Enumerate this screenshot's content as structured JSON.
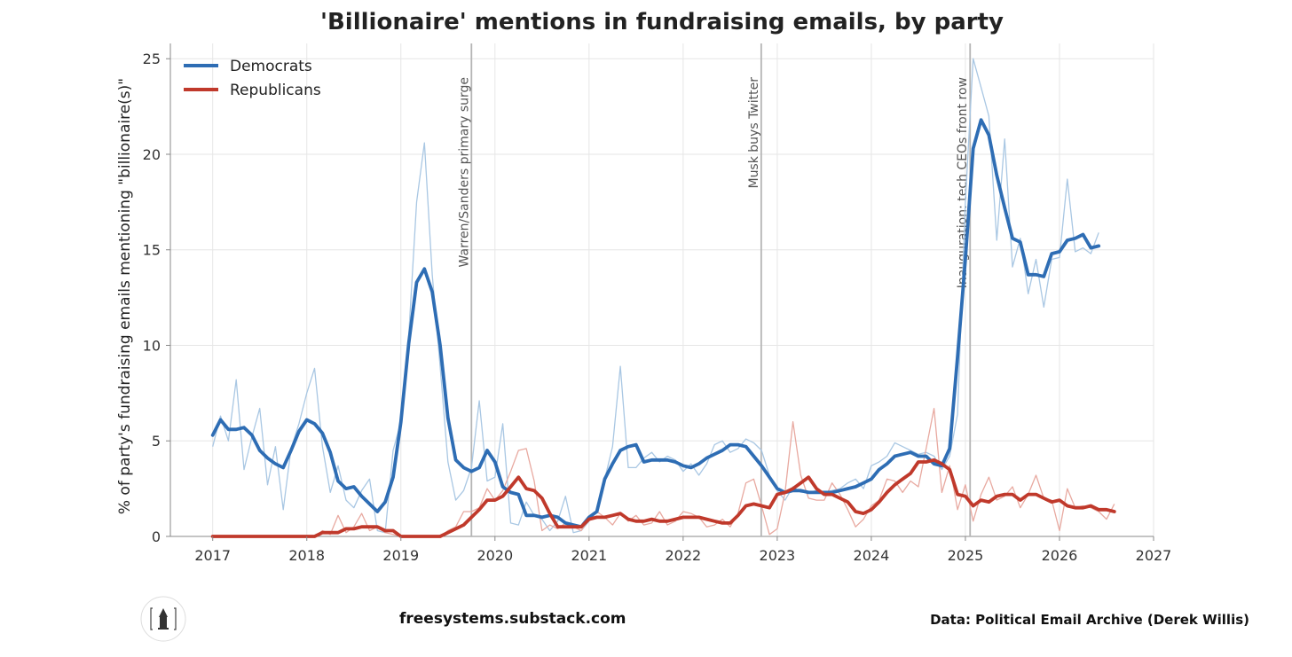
{
  "chart_data": {
    "type": "line",
    "title": "'Billionaire' mentions in fundraising emails, by party",
    "ylabel": "% of party's fundraising emails mentioning \"billionaire(s)\"",
    "xlabel": "",
    "xlim": [
      2016.55,
      2027
    ],
    "ylim": [
      0,
      25.8
    ],
    "x_ticks": [
      2017,
      2018,
      2019,
      2020,
      2021,
      2022,
      2023,
      2024,
      2025,
      2026,
      2027
    ],
    "y_ticks": [
      0,
      5,
      10,
      15,
      20,
      25
    ],
    "grid": true,
    "legend_position": "top-left",
    "series": [
      {
        "name": "Democrats",
        "color": "#2e6db4",
        "x": [
          2017.0,
          2017.083,
          2017.167,
          2017.25,
          2017.333,
          2017.417,
          2017.5,
          2017.583,
          2017.667,
          2017.75,
          2017.833,
          2017.917,
          2018.0,
          2018.083,
          2018.167,
          2018.25,
          2018.333,
          2018.417,
          2018.5,
          2018.583,
          2018.667,
          2018.75,
          2018.833,
          2018.917,
          2019.0,
          2019.083,
          2019.167,
          2019.25,
          2019.333,
          2019.417,
          2019.5,
          2019.583,
          2019.667,
          2019.75,
          2019.833,
          2019.917,
          2020.0,
          2020.083,
          2020.167,
          2020.25,
          2020.333,
          2020.417,
          2020.5,
          2020.583,
          2020.667,
          2020.75,
          2020.833,
          2020.917,
          2021.0,
          2021.083,
          2021.167,
          2021.25,
          2021.333,
          2021.417,
          2021.5,
          2021.583,
          2021.667,
          2021.75,
          2021.833,
          2021.917,
          2022.0,
          2022.083,
          2022.167,
          2022.25,
          2022.333,
          2022.417,
          2022.5,
          2022.583,
          2022.667,
          2022.75,
          2022.833,
          2022.917,
          2023.0,
          2023.083,
          2023.167,
          2023.25,
          2023.333,
          2023.417,
          2023.5,
          2023.583,
          2023.667,
          2023.75,
          2023.833,
          2023.917,
          2024.0,
          2024.083,
          2024.167,
          2024.25,
          2024.333,
          2024.417,
          2024.5,
          2024.583,
          2024.667,
          2024.75,
          2024.833,
          2024.917,
          2025.0,
          2025.083,
          2025.167,
          2025.25,
          2025.333,
          2025.417,
          2025.5,
          2025.583,
          2025.667,
          2025.75,
          2025.833,
          2025.917,
          2026.0,
          2026.083,
          2026.167,
          2026.25,
          2026.333,
          2026.417,
          2026.5,
          2026.583
        ],
        "smoothed": [
          5.3,
          6.1,
          5.6,
          5.6,
          5.7,
          5.3,
          4.5,
          4.1,
          3.8,
          3.6,
          4.5,
          5.5,
          6.1,
          5.9,
          5.4,
          4.4,
          2.9,
          2.5,
          2.6,
          2.1,
          1.7,
          1.3,
          1.8,
          3.1,
          6.0,
          10.1,
          13.3,
          14.0,
          12.8,
          10.0,
          6.2,
          4.0,
          3.6,
          3.4,
          3.6,
          4.5,
          3.9,
          2.6,
          2.3,
          2.2,
          1.1,
          1.1,
          1.0,
          1.1,
          1.0,
          0.7,
          0.6,
          0.5,
          1.0,
          1.3,
          3.0,
          3.8,
          4.5,
          4.7,
          4.8,
          3.9,
          4.0,
          4.0,
          4.0,
          3.9,
          3.7,
          3.6,
          3.8,
          4.1,
          4.3,
          4.5,
          4.8,
          4.8,
          4.7,
          4.2,
          3.7,
          3.1,
          2.5,
          2.3,
          2.4,
          2.4,
          2.3,
          2.3,
          2.3,
          2.3,
          2.4,
          2.5,
          2.6,
          2.8,
          3.0,
          3.5,
          3.8,
          4.2,
          4.3,
          4.4,
          4.2,
          4.2,
          3.8,
          3.7,
          4.6,
          9.4,
          14.5,
          20.3,
          21.8,
          21.0,
          18.9,
          17.2,
          15.6,
          15.4,
          13.7,
          13.7,
          13.6,
          14.8,
          14.9,
          15.5,
          15.6,
          15.8,
          15.1,
          15.2
        ],
        "raw": [
          4.7,
          6.3,
          5.0,
          8.2,
          3.5,
          5.2,
          6.7,
          2.7,
          4.7,
          1.4,
          4.6,
          5.9,
          7.5,
          8.8,
          4.7,
          2.3,
          3.7,
          1.9,
          1.5,
          2.4,
          3.0,
          0.3,
          0.2,
          4.5,
          6.0,
          10.5,
          17.5,
          20.6,
          13.7,
          8.9,
          3.9,
          1.9,
          2.4,
          3.6,
          7.1,
          2.9,
          3.1,
          5.9,
          0.7,
          0.6,
          1.8,
          1.1,
          0.9,
          0.3,
          0.8,
          2.1,
          0.2,
          0.3,
          0.8,
          1.3,
          3.0,
          4.7,
          8.9,
          3.6,
          3.6,
          4.1,
          4.4,
          3.9,
          4.2,
          4.0,
          3.4,
          3.8,
          3.2,
          3.8,
          4.8,
          5.0,
          4.4,
          4.6,
          5.1,
          4.9,
          4.5,
          3.2,
          2.4,
          1.9,
          2.6,
          2.3,
          2.3,
          2.4,
          2.3,
          2.4,
          2.5,
          2.8,
          3.0,
          2.5,
          3.7,
          3.9,
          4.2,
          4.9,
          4.7,
          4.5,
          4.3,
          4.4,
          4.2,
          3.5,
          4.2,
          6.4,
          17.5,
          25.0,
          23.5,
          22.0,
          15.5,
          20.8,
          14.1,
          15.6,
          12.7,
          14.5,
          12.0,
          14.5,
          14.6,
          18.7,
          14.9,
          15.1,
          14.8,
          15.9
        ]
      },
      {
        "name": "Republicans",
        "color": "#c0392b",
        "x": [
          2017.0,
          2017.083,
          2017.167,
          2017.25,
          2017.333,
          2017.417,
          2017.5,
          2017.583,
          2017.667,
          2017.75,
          2017.833,
          2017.917,
          2018.0,
          2018.083,
          2018.167,
          2018.25,
          2018.333,
          2018.417,
          2018.5,
          2018.583,
          2018.667,
          2018.75,
          2018.833,
          2018.917,
          2019.0,
          2019.083,
          2019.167,
          2019.25,
          2019.333,
          2019.417,
          2019.5,
          2019.583,
          2019.667,
          2019.75,
          2019.833,
          2019.917,
          2020.0,
          2020.083,
          2020.167,
          2020.25,
          2020.333,
          2020.417,
          2020.5,
          2020.583,
          2020.667,
          2020.75,
          2020.833,
          2020.917,
          2021.0,
          2021.083,
          2021.167,
          2021.25,
          2021.333,
          2021.417,
          2021.5,
          2021.583,
          2021.667,
          2021.75,
          2021.833,
          2021.917,
          2022.0,
          2022.083,
          2022.167,
          2022.25,
          2022.333,
          2022.417,
          2022.5,
          2022.583,
          2022.667,
          2022.75,
          2022.833,
          2022.917,
          2023.0,
          2023.083,
          2023.167,
          2023.25,
          2023.333,
          2023.417,
          2023.5,
          2023.583,
          2023.667,
          2023.75,
          2023.833,
          2023.917,
          2024.0,
          2024.083,
          2024.167,
          2024.25,
          2024.333,
          2024.417,
          2024.5,
          2024.583,
          2024.667,
          2024.75,
          2024.833,
          2024.917,
          2025.0,
          2025.083,
          2025.167,
          2025.25,
          2025.333,
          2025.417,
          2025.5,
          2025.583,
          2025.667,
          2025.75,
          2025.833,
          2025.917,
          2026.0,
          2026.083,
          2026.167,
          2026.25,
          2026.333,
          2026.417,
          2026.5,
          2026.583
        ],
        "smoothed": [
          0,
          0,
          0,
          0,
          0,
          0,
          0,
          0,
          0,
          0,
          0,
          0,
          0,
          0,
          0.2,
          0.2,
          0.2,
          0.4,
          0.4,
          0.5,
          0.5,
          0.5,
          0.3,
          0.3,
          0,
          0,
          0,
          0,
          0,
          0,
          0.2,
          0.4,
          0.6,
          1.0,
          1.4,
          1.9,
          1.9,
          2.1,
          2.6,
          3.1,
          2.5,
          2.4,
          2.0,
          1.2,
          0.5,
          0.5,
          0.5,
          0.5,
          0.9,
          1.0,
          1.0,
          1.1,
          1.2,
          0.9,
          0.8,
          0.8,
          0.9,
          0.8,
          0.8,
          0.9,
          1.0,
          1.0,
          1.0,
          0.9,
          0.8,
          0.7,
          0.7,
          1.1,
          1.6,
          1.7,
          1.6,
          1.5,
          2.2,
          2.3,
          2.5,
          2.8,
          3.1,
          2.5,
          2.2,
          2.2,
          2.0,
          1.8,
          1.3,
          1.2,
          1.4,
          1.8,
          2.3,
          2.7,
          3.0,
          3.3,
          3.9,
          3.9,
          4.0,
          3.8,
          3.5,
          2.2,
          2.1,
          1.6,
          1.9,
          1.8,
          2.1,
          2.2,
          2.2,
          1.9,
          2.2,
          2.2,
          2.0,
          1.8,
          1.9,
          1.6,
          1.5,
          1.5,
          1.6,
          1.4,
          1.4,
          1.3
        ],
        "raw": [
          0,
          0,
          0,
          0,
          0,
          0,
          0,
          0,
          0,
          0,
          0,
          0,
          0,
          0,
          0.3,
          0.1,
          1.1,
          0.2,
          0.5,
          1.2,
          0.3,
          0.5,
          0.2,
          0.1,
          0,
          0,
          0,
          0,
          0,
          0,
          0.3,
          0.5,
          1.3,
          1.3,
          1.5,
          2.5,
          1.9,
          2.4,
          3.4,
          4.5,
          4.6,
          2.9,
          0.3,
          0.6,
          0.4,
          0.7,
          0.5,
          0.3,
          0.9,
          1.3,
          1.0,
          0.6,
          1.2,
          0.8,
          1.1,
          0.6,
          0.7,
          1.3,
          0.6,
          0.8,
          1.3,
          1.2,
          1.0,
          0.5,
          0.6,
          0.9,
          0.5,
          1.2,
          2.8,
          3.0,
          1.6,
          0.1,
          0.4,
          2.3,
          6.0,
          3.2,
          2.0,
          1.9,
          1.9,
          2.8,
          2.2,
          1.4,
          0.5,
          0.9,
          1.6,
          1.9,
          3.0,
          2.9,
          2.3,
          2.9,
          2.6,
          4.6,
          6.7,
          2.3,
          3.7,
          1.4,
          2.7,
          0.8,
          2.2,
          3.1,
          1.9,
          2.1,
          2.6,
          1.5,
          2.2,
          3.2,
          2.0,
          1.9,
          0.3,
          2.5,
          1.5,
          1.6,
          1.5,
          1.3,
          0.9,
          1.7
        ]
      }
    ],
    "annotations": [
      {
        "x": 2019.75,
        "label": "Warren/Sanders primary surge"
      },
      {
        "x": 2022.83,
        "label": "Musk buys Twitter"
      },
      {
        "x": 2025.05,
        "label": "Inauguration: tech CEOs front row"
      }
    ]
  },
  "footer": {
    "site": "freesystems.substack.com",
    "source": "Data: Political Email Archive (Derek Willis)"
  }
}
